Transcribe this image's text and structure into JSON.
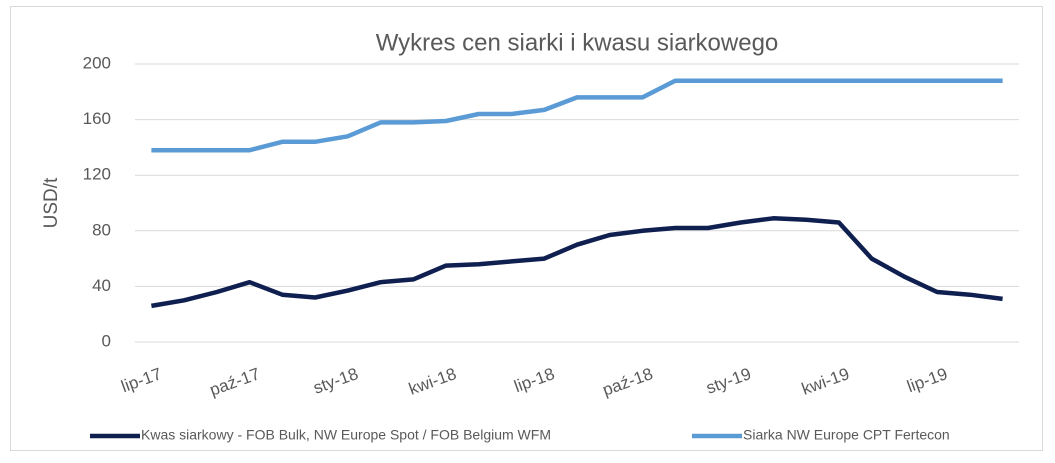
{
  "chart_data": {
    "type": "line",
    "title": "Wykres cen siarki i kwasu siarkowego",
    "y_label": "USD/t",
    "categories": [
      "lip-17",
      null,
      null,
      "paź-17",
      null,
      null,
      "sty-18",
      null,
      null,
      "kwi-18",
      null,
      null,
      "lip-18",
      null,
      null,
      "paź-18",
      null,
      null,
      "sty-19",
      null,
      null,
      "kwi-19",
      null,
      null,
      "lip-19",
      null,
      null
    ],
    "series": [
      {
        "name": "Kwas siarkowy - FOB Bulk, NW Europe Spot  / FOB Belgium WFM",
        "color": "#0f1f50",
        "values": [
          26,
          30,
          36,
          43,
          34,
          32,
          37,
          43,
          45,
          55,
          56,
          58,
          60,
          70,
          77,
          80,
          82,
          82,
          86,
          89,
          88,
          86,
          60,
          47,
          36,
          34,
          31
        ]
      },
      {
        "name": "Siarka NW Europe CPT Fertecon",
        "color": "#5b9bd5",
        "values": [
          138,
          138,
          138,
          138,
          144,
          144,
          148,
          158,
          158,
          159,
          164,
          164,
          167,
          176,
          176,
          176,
          188,
          188,
          188,
          188,
          188,
          188,
          188,
          188,
          188,
          188,
          188
        ]
      }
    ],
    "ylim": [
      0,
      200
    ],
    "yticks": [
      0,
      40,
      80,
      120,
      160,
      200
    ],
    "grid": true,
    "legend": "bottom"
  }
}
